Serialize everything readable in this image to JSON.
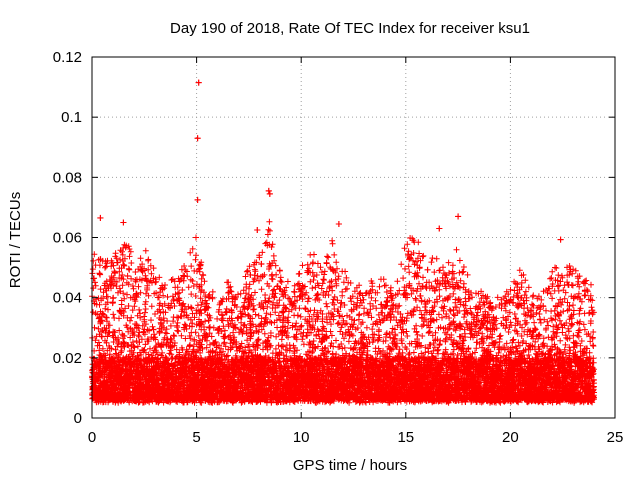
{
  "chart_data": {
    "type": "scatter",
    "title": "Day 190 of 2018, Rate Of TEC Index for receiver ksu1",
    "xlabel": "GPS time / hours",
    "ylabel": "ROTI / TECUs",
    "xlim": [
      0,
      25
    ],
    "ylim": [
      0,
      0.12
    ],
    "grid": true,
    "marker": "+",
    "color": "#ff0000",
    "x_ticks": [
      "0",
      "5",
      "10",
      "15",
      "20",
      "25"
    ],
    "y_ticks": [
      "0",
      "0.02",
      "0.04",
      "0.06",
      "0.08",
      "0.1",
      "0.12"
    ],
    "series": [
      {
        "name": "ROTI",
        "highlights": [
          {
            "x": 5.1,
            "y": 0.1115
          },
          {
            "x": 5.05,
            "y": 0.093
          },
          {
            "x": 5.05,
            "y": 0.0725
          },
          {
            "x": 8.45,
            "y": 0.0755
          },
          {
            "x": 8.5,
            "y": 0.0745
          },
          {
            "x": 0.4,
            "y": 0.0665
          },
          {
            "x": 1.5,
            "y": 0.065
          },
          {
            "x": 17.5,
            "y": 0.067
          },
          {
            "x": 11.8,
            "y": 0.0645
          },
          {
            "x": 16.6,
            "y": 0.063
          },
          {
            "x": 22.4,
            "y": 0.0593
          },
          {
            "x": 7.9,
            "y": 0.0625
          }
        ],
        "envelope_hours": [
          0,
          0.5,
          1,
          1.5,
          2,
          2.5,
          3,
          3.5,
          4,
          4.5,
          5,
          5.5,
          6,
          6.5,
          7,
          7.5,
          8,
          8.5,
          9,
          9.5,
          10,
          10.5,
          11,
          11.5,
          12,
          12.5,
          13,
          13.5,
          14,
          14.5,
          15,
          15.5,
          16,
          16.5,
          17,
          17.5,
          18,
          18.5,
          19,
          19.5,
          20,
          20.5,
          21,
          21.5,
          22,
          22.5,
          23,
          23.5,
          24
        ],
        "envelope_upper": [
          0.058,
          0.056,
          0.052,
          0.06,
          0.052,
          0.055,
          0.05,
          0.045,
          0.046,
          0.05,
          0.06,
          0.042,
          0.04,
          0.045,
          0.04,
          0.05,
          0.055,
          0.065,
          0.05,
          0.042,
          0.05,
          0.055,
          0.05,
          0.058,
          0.05,
          0.045,
          0.04,
          0.048,
          0.045,
          0.042,
          0.058,
          0.06,
          0.05,
          0.055,
          0.05,
          0.058,
          0.045,
          0.042,
          0.04,
          0.038,
          0.042,
          0.05,
          0.04,
          0.04,
          0.05,
          0.048,
          0.052,
          0.045,
          0.044
        ],
        "floor": 0.005
      }
    ]
  }
}
